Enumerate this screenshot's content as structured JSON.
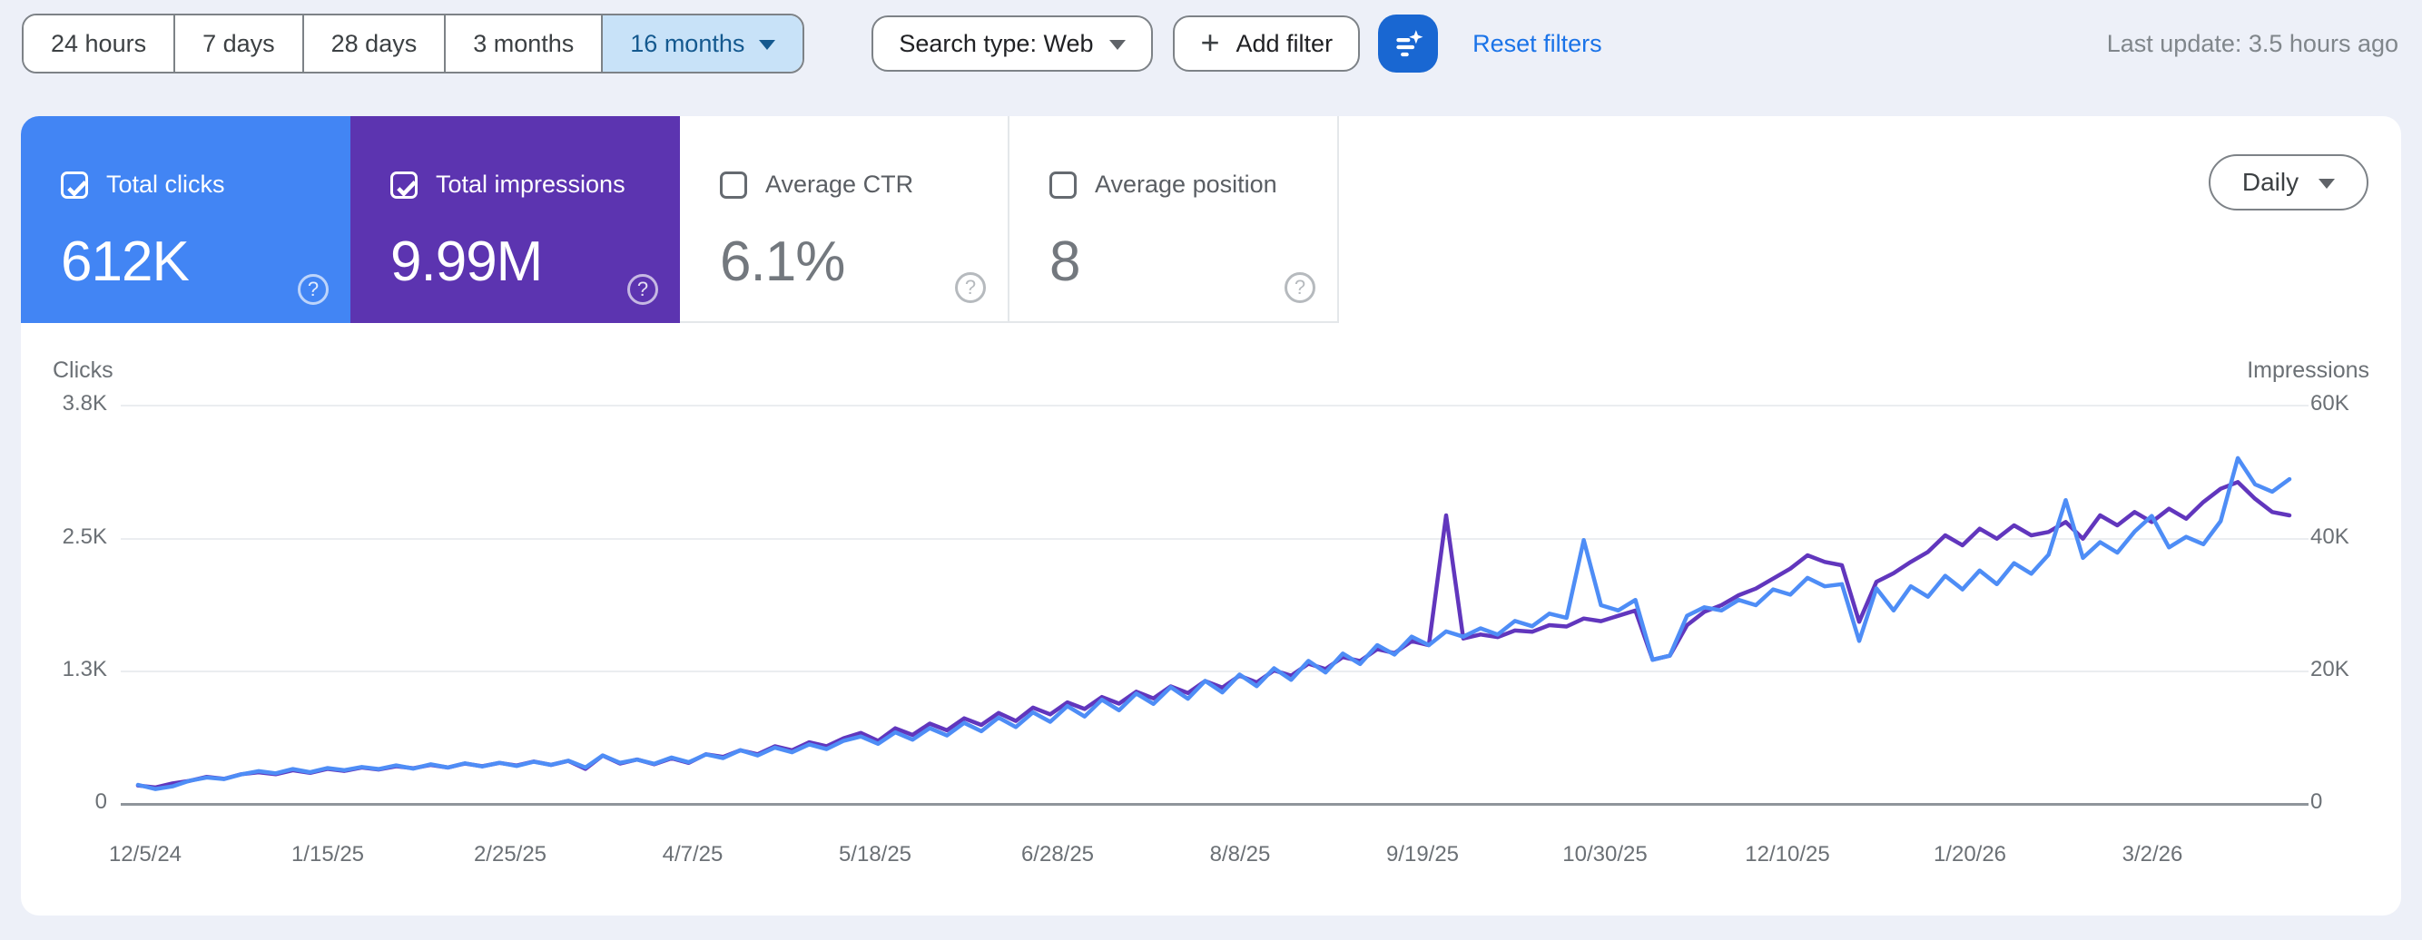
{
  "toolbar": {
    "date_ranges": [
      {
        "label": "24 hours",
        "selected": false
      },
      {
        "label": "7 days",
        "selected": false
      },
      {
        "label": "28 days",
        "selected": false
      },
      {
        "label": "3 months",
        "selected": false
      },
      {
        "label": "16 months",
        "selected": true
      }
    ],
    "search_type_label": "Search type: Web",
    "add_filter_plus": "+",
    "add_filter_label": "Add filter",
    "ai_filter_icon": "filter-sparkle-icon",
    "reset_filters_label": "Reset filters",
    "last_update": "Last update: 3.5 hours ago"
  },
  "colors": {
    "clicks_blue": "#4285f4",
    "impressions_purple": "#5c34b0",
    "line_blue": "#4e8df6",
    "line_purple": "#6136bd",
    "link_blue": "#1a73e8",
    "ai_button_blue": "#1967d2",
    "selected_chip_bg": "#c8e2f8",
    "selected_chip_text": "#14598f",
    "page_background": "#edf0f8"
  },
  "metrics": [
    {
      "label": "Total clicks",
      "value": "612K",
      "checked": true,
      "color": "#4285f4"
    },
    {
      "label": "Total impressions",
      "value": "9.99M",
      "checked": true,
      "color": "#5c34b0"
    },
    {
      "label": "Average CTR",
      "value": "6.1%",
      "checked": false,
      "color": ""
    },
    {
      "label": "Average position",
      "value": "8",
      "checked": false,
      "color": ""
    }
  ],
  "help_glyph": "?",
  "granularity": {
    "label": "Daily"
  },
  "chart_data": {
    "type": "line",
    "title": "Search performance over time (clicks and impressions, daily)",
    "grid": true,
    "legend_position": "none",
    "left_axis": {
      "title": "Clicks",
      "ticks": [
        "3.8K",
        "2.5K",
        "1.3K",
        "0"
      ],
      "ylim": [
        0,
        3800
      ]
    },
    "right_axis": {
      "title": "Impressions",
      "ticks": [
        "60K",
        "40K",
        "20K",
        "0"
      ],
      "ylim": [
        0,
        60000
      ]
    },
    "x_labels": [
      "12/5/24",
      "1/15/25",
      "2/25/25",
      "4/7/25",
      "5/18/25",
      "6/28/25",
      "8/8/25",
      "9/19/25",
      "10/30/25",
      "12/10/25",
      "1/20/26",
      "3/2/26"
    ],
    "sampling_note": "126 samples evenly spaced across the 16-month range (t = 0..1)",
    "series": [
      {
        "name": "Clicks",
        "axis": "left",
        "color": "#4e8df6",
        "values": [
          190,
          150,
          175,
          230,
          260,
          245,
          290,
          320,
          300,
          340,
          310,
          350,
          330,
          360,
          340,
          375,
          345,
          385,
          355,
          395,
          365,
          400,
          370,
          410,
          380,
          420,
          355,
          470,
          400,
          430,
          390,
          450,
          405,
          480,
          445,
          520,
          470,
          545,
          500,
          575,
          530,
          610,
          650,
          580,
          690,
          620,
          730,
          660,
          780,
          700,
          830,
          740,
          880,
          790,
          940,
          840,
          1000,
          900,
          1060,
          960,
          1120,
          1010,
          1180,
          1070,
          1240,
          1130,
          1300,
          1190,
          1370,
          1260,
          1440,
          1340,
          1520,
          1430,
          1600,
          1520,
          1650,
          1600,
          1680,
          1620,
          1750,
          1700,
          1820,
          1780,
          2520,
          1900,
          1850,
          1950,
          1380,
          1420,
          1800,
          1880,
          1850,
          1950,
          1900,
          2050,
          2000,
          2160,
          2080,
          2100,
          1560,
          2060,
          1850,
          2080,
          1980,
          2180,
          2050,
          2230,
          2100,
          2300,
          2200,
          2380,
          2900,
          2350,
          2500,
          2400,
          2600,
          2750,
          2450,
          2550,
          2480,
          2700,
          3300,
          3050,
          2980,
          3100
        ]
      },
      {
        "name": "Impressions",
        "axis": "right",
        "color": "#6136bd",
        "values": [
          2900,
          2600,
          3200,
          3600,
          4200,
          3900,
          4600,
          4900,
          4600,
          5200,
          4800,
          5400,
          5100,
          5600,
          5300,
          5800,
          5500,
          6000,
          5600,
          6200,
          5800,
          6300,
          5900,
          6500,
          6000,
          6600,
          5400,
          7400,
          6200,
          6800,
          6100,
          7000,
          6300,
          7600,
          7200,
          8200,
          7600,
          8800,
          8200,
          9400,
          8800,
          10000,
          10800,
          9600,
          11500,
          10500,
          12200,
          11200,
          13000,
          12000,
          13800,
          12600,
          14600,
          13600,
          15400,
          14400,
          16200,
          15200,
          17000,
          16000,
          17800,
          16800,
          18600,
          17600,
          19400,
          18400,
          20200,
          19400,
          21200,
          20400,
          22200,
          21600,
          23400,
          22800,
          24600,
          24000,
          43500,
          25000,
          25600,
          25200,
          26200,
          26000,
          27000,
          26800,
          28000,
          27600,
          28400,
          29200,
          21800,
          22400,
          27000,
          29000,
          30000,
          31500,
          32500,
          34000,
          35500,
          37500,
          36500,
          36000,
          27500,
          33500,
          34800,
          36500,
          38000,
          40500,
          39000,
          41500,
          40000,
          42000,
          40500,
          41000,
          42500,
          40000,
          43500,
          42000,
          44000,
          42500,
          44500,
          43000,
          45500,
          47500,
          48500,
          46000,
          44000,
          43500
        ]
      }
    ]
  }
}
